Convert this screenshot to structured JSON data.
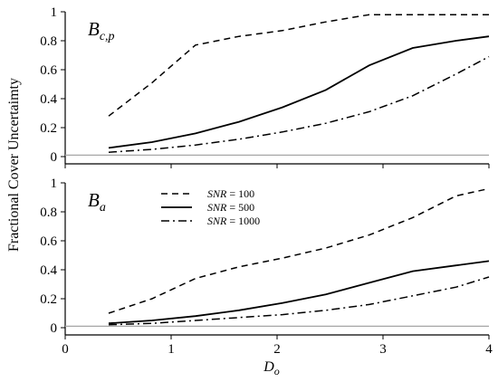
{
  "chart_data": [
    {
      "type": "line",
      "panel_label": "B",
      "panel_label_sub": "c,p",
      "x_ticks": [
        0,
        1,
        2,
        3,
        4
      ],
      "y_ticks": [
        0,
        0.2,
        0.4,
        0.6,
        0.8,
        1
      ],
      "ylim": [
        -0.05,
        1
      ],
      "xlim": [
        0,
        4
      ],
      "series": [
        {
          "name": "SNR = 100",
          "style": "dashed",
          "x": [
            0.41,
            0.82,
            1.23,
            1.64,
            2.05,
            2.46,
            2.87,
            3.28,
            3.69,
            4.0
          ],
          "y": [
            0.28,
            0.51,
            0.77,
            0.83,
            0.87,
            0.93,
            0.98,
            0.98,
            0.98,
            0.98
          ]
        },
        {
          "name": "SNR = 500",
          "style": "solid",
          "x": [
            0.41,
            0.82,
            1.23,
            1.64,
            2.05,
            2.46,
            2.87,
            3.28,
            3.69,
            4.0
          ],
          "y": [
            0.06,
            0.1,
            0.16,
            0.24,
            0.34,
            0.46,
            0.63,
            0.75,
            0.8,
            0.83
          ]
        },
        {
          "name": "SNR = 1000",
          "style": "dashdot",
          "x": [
            0.41,
            0.82,
            1.23,
            1.64,
            2.05,
            2.46,
            2.87,
            3.28,
            3.69,
            4.0
          ],
          "y": [
            0.03,
            0.05,
            0.08,
            0.12,
            0.17,
            0.23,
            0.31,
            0.42,
            0.57,
            0.69
          ]
        }
      ],
      "reference_line": 0.01,
      "show_x_tick_labels": false
    },
    {
      "type": "line",
      "panel_label": "B",
      "panel_label_sub": "a",
      "x_ticks": [
        0,
        1,
        2,
        3,
        4
      ],
      "y_ticks": [
        0,
        0.2,
        0.4,
        0.6,
        0.8,
        1
      ],
      "ylim": [
        -0.05,
        1
      ],
      "xlim": [
        0,
        4
      ],
      "xlabel": "D",
      "xlabel_sub": "o",
      "series": [
        {
          "name": "SNR = 100",
          "style": "dashed",
          "x": [
            0.41,
            0.82,
            1.23,
            1.64,
            2.05,
            2.46,
            2.87,
            3.28,
            3.69,
            4.0
          ],
          "y": [
            0.1,
            0.2,
            0.34,
            0.42,
            0.48,
            0.55,
            0.64,
            0.76,
            0.91,
            0.96
          ]
        },
        {
          "name": "SNR = 500",
          "style": "solid",
          "x": [
            0.41,
            0.82,
            1.23,
            1.64,
            2.05,
            2.46,
            2.87,
            3.28,
            3.69,
            4.0
          ],
          "y": [
            0.03,
            0.05,
            0.08,
            0.12,
            0.17,
            0.23,
            0.31,
            0.39,
            0.43,
            0.46
          ]
        },
        {
          "name": "SNR = 1000",
          "style": "dashdot",
          "x": [
            0.41,
            0.82,
            1.23,
            1.64,
            2.05,
            2.46,
            2.87,
            3.28,
            3.69,
            4.0
          ],
          "y": [
            0.02,
            0.03,
            0.05,
            0.07,
            0.09,
            0.12,
            0.16,
            0.22,
            0.28,
            0.35
          ]
        }
      ],
      "reference_line": 0.01,
      "show_x_tick_labels": true
    }
  ],
  "shared": {
    "ylabel": "Fractional Cover Uncertaimty",
    "legend": [
      {
        "prefix": "SNR",
        "text": " = 100",
        "style": "dashed"
      },
      {
        "prefix": "SNR",
        "text": " = 500",
        "style": "solid"
      },
      {
        "prefix": "SNR",
        "text": " = 1000",
        "style": "dashdot"
      }
    ],
    "line_color": "#000000",
    "reference_color": "#a6a6a6"
  }
}
